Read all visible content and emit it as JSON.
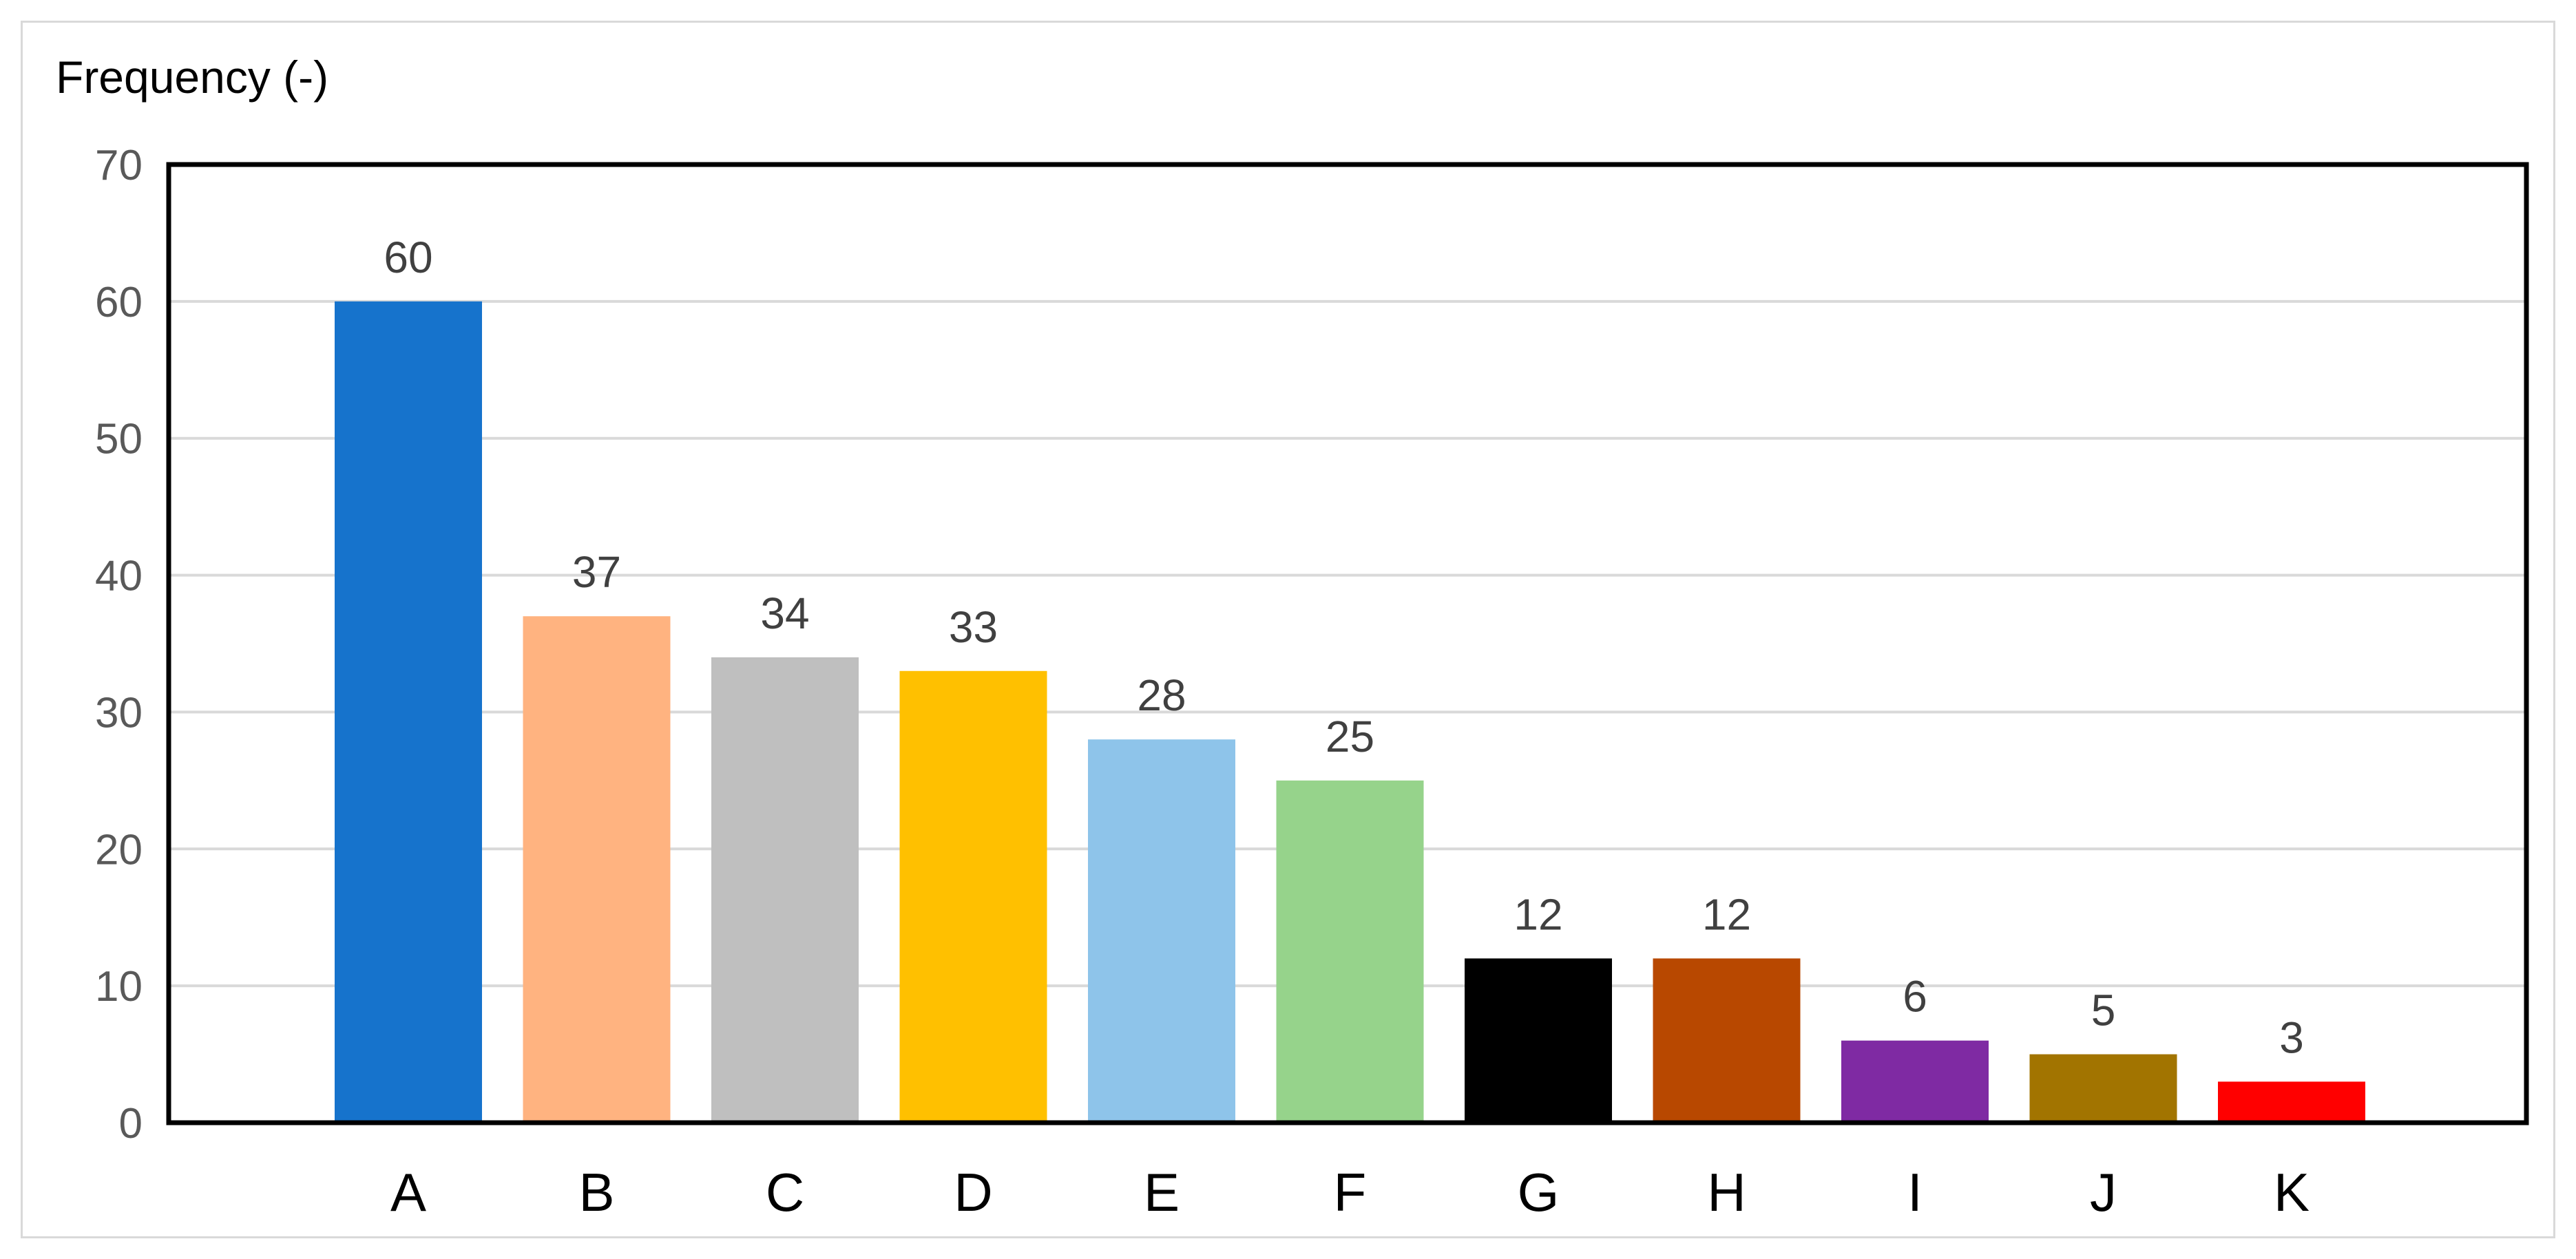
{
  "chart_data": {
    "type": "bar",
    "title": "",
    "xlabel": "",
    "ylabel": "Frequency (-)",
    "ylim": [
      0,
      70
    ],
    "yticks": [
      0,
      10,
      20,
      30,
      40,
      50,
      60,
      70
    ],
    "grid": true,
    "legend": "none",
    "categories": [
      "A",
      "B",
      "C",
      "D",
      "E",
      "F",
      "G",
      "H",
      "I",
      "J",
      "K"
    ],
    "values": [
      60,
      37,
      34,
      33,
      28,
      25,
      12,
      12,
      6,
      5,
      3
    ],
    "data_labels": [
      "60",
      "37",
      "34",
      "33",
      "28",
      "25",
      "12",
      "12",
      "6",
      "5",
      "3"
    ],
    "colors": [
      "#1673cc",
      "#ffb380",
      "#bfbfbf",
      "#ffc000",
      "#8ec4ea",
      "#96d38b",
      "#000000",
      "#b84800",
      "#7f2aa3",
      "#a27400",
      "#ff0000"
    ]
  }
}
